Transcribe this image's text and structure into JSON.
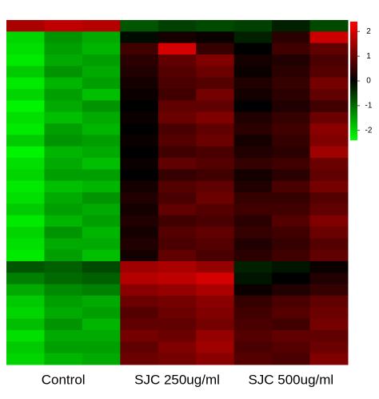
{
  "chart_data": {
    "type": "heatmap",
    "groups": [
      "Control",
      "SJC 250ug/ml",
      "SJC 500ug/ml"
    ],
    "colors": {
      "low": "#00ff00",
      "mid": "#000000",
      "high": "#ff0000"
    },
    "zlim": [
      -2.4,
      2.4
    ],
    "zticks": [
      -2,
      -1,
      0,
      1,
      2
    ],
    "matrix": [
      [
        1.6,
        1.8,
        1.7,
        -0.8,
        -0.6,
        -0.7,
        -0.6,
        -0.3,
        -0.7
      ],
      [
        -2.0,
        -1.4,
        -1.6,
        -0.1,
        0.2,
        0.1,
        -0.3,
        0.4,
        1.9
      ],
      [
        -2.1,
        -1.5,
        -1.7,
        0.6,
        2.0,
        0.5,
        0.0,
        0.6,
        0.9
      ],
      [
        -2.2,
        -1.6,
        -1.5,
        0.4,
        0.9,
        1.2,
        0.2,
        0.3,
        0.7
      ],
      [
        -1.9,
        -1.4,
        -1.6,
        0.3,
        0.8,
        1.0,
        0.1,
        0.4,
        0.8
      ],
      [
        -2.2,
        -1.7,
        -1.5,
        0.2,
        0.7,
        0.8,
        0.3,
        0.5,
        1.1
      ],
      [
        -2.0,
        -1.5,
        -1.8,
        0.1,
        0.6,
        1.1,
        0.2,
        0.4,
        0.9
      ],
      [
        -2.3,
        -1.6,
        -1.4,
        0.0,
        0.9,
        0.9,
        0.0,
        0.3,
        0.6
      ],
      [
        -2.1,
        -1.8,
        -1.6,
        0.1,
        1.0,
        1.2,
        0.3,
        0.5,
        1.0
      ],
      [
        -2.2,
        -1.5,
        -1.7,
        0.0,
        0.7,
        0.9,
        0.4,
        0.6,
        1.3
      ],
      [
        -1.9,
        -1.4,
        -1.5,
        0.1,
        0.8,
        1.0,
        0.2,
        0.5,
        1.2
      ],
      [
        -2.3,
        -1.7,
        -1.6,
        0.0,
        0.6,
        0.7,
        0.3,
        0.4,
        1.5
      ],
      [
        -2.1,
        -1.6,
        -1.8,
        0.1,
        0.9,
        0.8,
        0.5,
        0.6,
        1.0
      ],
      [
        -2.0,
        -1.5,
        -1.5,
        0.0,
        0.5,
        0.6,
        0.2,
        0.4,
        0.9
      ],
      [
        -2.2,
        -1.8,
        -1.7,
        0.2,
        0.8,
        0.9,
        0.3,
        0.7,
        1.1
      ],
      [
        -2.1,
        -1.6,
        -1.4,
        0.3,
        0.7,
        1.0,
        0.5,
        0.5,
        0.8
      ],
      [
        -1.9,
        -1.5,
        -1.6,
        0.2,
        0.9,
        0.8,
        0.6,
        0.6,
        0.9
      ],
      [
        -2.2,
        -1.7,
        -1.5,
        0.3,
        0.6,
        0.7,
        0.4,
        0.8,
        1.2
      ],
      [
        -2.0,
        -1.4,
        -1.7,
        0.2,
        0.8,
        0.9,
        0.5,
        0.6,
        1.0
      ],
      [
        -2.1,
        -1.6,
        -1.6,
        0.3,
        0.7,
        0.8,
        0.3,
        0.5,
        0.8
      ],
      [
        -2.2,
        -1.5,
        -1.8,
        0.2,
        0.9,
        0.7,
        0.4,
        0.6,
        0.9
      ],
      [
        -0.8,
        -0.9,
        -0.7,
        1.5,
        1.6,
        1.4,
        -0.3,
        -0.2,
        0.1
      ],
      [
        -1.2,
        -1.0,
        -0.9,
        1.7,
        1.8,
        2.0,
        -0.2,
        0.0,
        0.3
      ],
      [
        -1.6,
        -1.3,
        -1.2,
        1.3,
        1.4,
        1.6,
        0.1,
        0.3,
        0.5
      ],
      [
        -1.9,
        -1.5,
        -1.6,
        1.0,
        1.1,
        1.3,
        0.5,
        0.7,
        0.9
      ],
      [
        -2.0,
        -1.6,
        -1.5,
        0.8,
        1.0,
        1.2,
        0.6,
        0.8,
        1.0
      ],
      [
        -1.8,
        -1.4,
        -1.7,
        0.9,
        0.9,
        1.1,
        0.7,
        0.6,
        1.1
      ],
      [
        -2.1,
        -1.6,
        -1.6,
        1.1,
        1.0,
        1.4,
        0.8,
        0.9,
        0.9
      ],
      [
        -1.9,
        -1.5,
        -1.5,
        0.9,
        1.2,
        1.5,
        0.7,
        0.8,
        1.0
      ],
      [
        -2.0,
        -1.7,
        -1.6,
        1.0,
        1.1,
        1.3,
        0.8,
        0.7,
        1.2
      ]
    ]
  }
}
